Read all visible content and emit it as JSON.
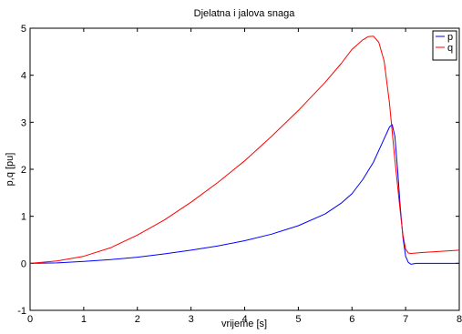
{
  "chart_data": {
    "type": "line",
    "title": "Djelatna i jalova snaga",
    "xlabel": "vrijeme [s]",
    "ylabel": "p,q [pu]",
    "xlim": [
      0,
      8
    ],
    "ylim": [
      -1,
      5
    ],
    "xticks": [
      "0",
      "1",
      "2",
      "3",
      "4",
      "5",
      "6",
      "7",
      "8"
    ],
    "yticks": [
      "-1",
      "0",
      "1",
      "2",
      "3",
      "4",
      "5"
    ],
    "grid": false,
    "legend_position": "top-right",
    "series": [
      {
        "name": "p",
        "color": "#0000ff",
        "x": [
          0,
          0.5,
          1,
          1.5,
          2,
          2.5,
          3,
          3.5,
          4,
          4.5,
          5,
          5.5,
          5.8,
          6.0,
          6.2,
          6.4,
          6.5,
          6.6,
          6.7,
          6.75,
          6.8,
          6.85,
          6.9,
          6.95,
          7.0,
          7.05,
          7.1,
          7.2,
          7.5,
          8.0
        ],
        "y": [
          0,
          0.01,
          0.04,
          0.08,
          0.13,
          0.2,
          0.28,
          0.37,
          0.48,
          0.62,
          0.8,
          1.05,
          1.28,
          1.48,
          1.78,
          2.15,
          2.4,
          2.65,
          2.9,
          2.95,
          2.7,
          2.0,
          1.2,
          0.55,
          0.15,
          0.02,
          -0.02,
          0.0,
          0.0,
          0.0
        ]
      },
      {
        "name": "q",
        "color": "#ff0000",
        "x": [
          0,
          0.5,
          1,
          1.5,
          2,
          2.5,
          3,
          3.5,
          4,
          4.5,
          5,
          5.5,
          5.8,
          6.0,
          6.2,
          6.3,
          6.4,
          6.5,
          6.6,
          6.7,
          6.8,
          6.9,
          6.95,
          7.0,
          7.05,
          7.1,
          7.3,
          7.6,
          8.0
        ],
        "y": [
          0,
          0.05,
          0.15,
          0.33,
          0.6,
          0.92,
          1.3,
          1.72,
          2.18,
          2.7,
          3.25,
          3.85,
          4.25,
          4.55,
          4.75,
          4.82,
          4.83,
          4.7,
          4.3,
          3.4,
          2.2,
          1.1,
          0.6,
          0.3,
          0.22,
          0.21,
          0.23,
          0.25,
          0.28
        ]
      }
    ]
  }
}
